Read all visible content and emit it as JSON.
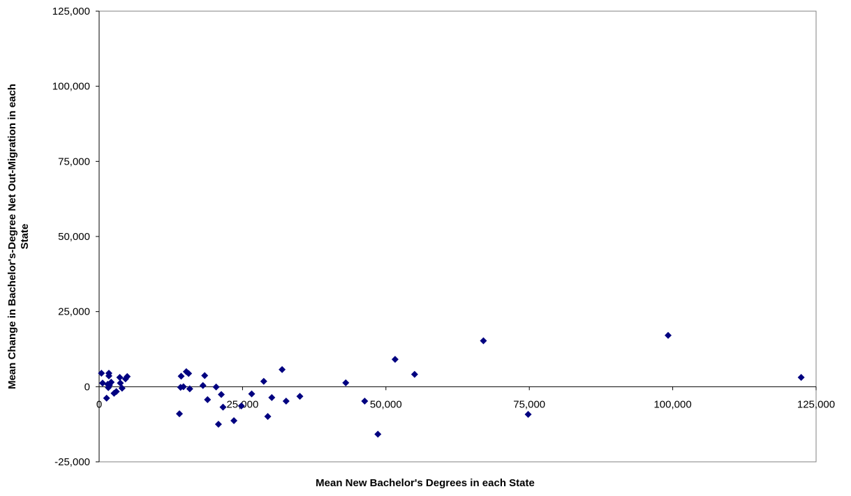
{
  "chart_data": {
    "type": "scatter",
    "title": "",
    "xlabel": "Mean New Bachelor's Degrees in each State",
    "ylabel_lines": [
      "Mean Change in Bachelor's-Degree Net Out-Migration in each",
      "State"
    ],
    "xlim": [
      0,
      125000
    ],
    "ylim": [
      -25000,
      125000
    ],
    "x_ticks": [
      0,
      25000,
      50000,
      75000,
      100000,
      125000
    ],
    "y_ticks": [
      -25000,
      0,
      25000,
      50000,
      75000,
      100000,
      125000
    ],
    "x_tick_labels": [
      "0",
      "25,000",
      "50,000",
      "75,000",
      "100,000",
      "125,000"
    ],
    "y_tick_labels": [
      "-25,000",
      "0",
      "25,000",
      "50,000",
      "75,000",
      "100,000",
      "125,000"
    ],
    "grid": false,
    "legend": "none",
    "marker": "diamond",
    "marker_color": "#000080",
    "points": [
      {
        "x": 400,
        "y": 4500
      },
      {
        "x": 600,
        "y": 1200
      },
      {
        "x": 1300,
        "y": -3800
      },
      {
        "x": 1500,
        "y": 800
      },
      {
        "x": 1600,
        "y": -300
      },
      {
        "x": 1700,
        "y": 4500
      },
      {
        "x": 1700,
        "y": 3600
      },
      {
        "x": 1800,
        "y": 500
      },
      {
        "x": 2100,
        "y": 1500
      },
      {
        "x": 2600,
        "y": -2200
      },
      {
        "x": 3000,
        "y": -1600
      },
      {
        "x": 3600,
        "y": 3100
      },
      {
        "x": 3700,
        "y": 1200
      },
      {
        "x": 4000,
        "y": -500
      },
      {
        "x": 4600,
        "y": 2600
      },
      {
        "x": 4900,
        "y": 3400
      },
      {
        "x": 14000,
        "y": -9000
      },
      {
        "x": 14200,
        "y": -200
      },
      {
        "x": 14300,
        "y": 3500
      },
      {
        "x": 14700,
        "y": 0
      },
      {
        "x": 15200,
        "y": 5000
      },
      {
        "x": 15600,
        "y": 4400
      },
      {
        "x": 15800,
        "y": -700
      },
      {
        "x": 18100,
        "y": 400
      },
      {
        "x": 18400,
        "y": 3700
      },
      {
        "x": 18900,
        "y": -4300
      },
      {
        "x": 20400,
        "y": -100
      },
      {
        "x": 20800,
        "y": -12500
      },
      {
        "x": 21300,
        "y": -2600
      },
      {
        "x": 21600,
        "y": -6800
      },
      {
        "x": 23500,
        "y": -11300
      },
      {
        "x": 24800,
        "y": -6400
      },
      {
        "x": 26600,
        "y": -2400
      },
      {
        "x": 28700,
        "y": 1800
      },
      {
        "x": 29400,
        "y": -9900
      },
      {
        "x": 30100,
        "y": -3600
      },
      {
        "x": 31900,
        "y": 5700
      },
      {
        "x": 32600,
        "y": -4800
      },
      {
        "x": 35000,
        "y": -3200
      },
      {
        "x": 43000,
        "y": 1300
      },
      {
        "x": 46300,
        "y": -4800
      },
      {
        "x": 48600,
        "y": -15800
      },
      {
        "x": 51600,
        "y": 9100
      },
      {
        "x": 55000,
        "y": 4100
      },
      {
        "x": 67000,
        "y": 15300
      },
      {
        "x": 74800,
        "y": -9200
      },
      {
        "x": 99200,
        "y": 17100
      },
      {
        "x": 122400,
        "y": 3100
      }
    ]
  }
}
